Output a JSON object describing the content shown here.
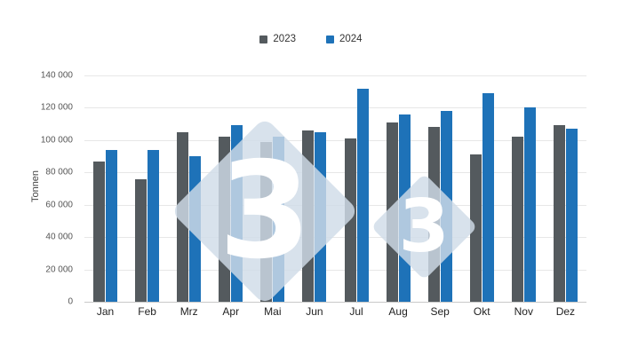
{
  "chart_data": {
    "type": "bar",
    "title": "",
    "xlabel": "",
    "ylabel": "Tonnen",
    "ylim": [
      0,
      140000
    ],
    "grid": true,
    "legend_position": "top",
    "categories": [
      "Jan",
      "Feb",
      "Mrz",
      "Apr",
      "Mai",
      "Jun",
      "Jul",
      "Aug",
      "Sep",
      "Okt",
      "Nov",
      "Dez"
    ],
    "series": [
      {
        "name": "2023",
        "color": "#545a5e",
        "values": [
          87000,
          76000,
          105000,
          102000,
          99000,
          106000,
          101000,
          111000,
          108000,
          91000,
          102000,
          109000
        ]
      },
      {
        "name": "2024",
        "color": "#1e72b8",
        "values": [
          94000,
          94000,
          90000,
          109000,
          102000,
          105000,
          132000,
          116000,
          118000,
          129000,
          120000,
          107000
        ]
      }
    ],
    "yticks": [
      {
        "value": 0,
        "label": "0"
      },
      {
        "value": 20000,
        "label": "20 000"
      },
      {
        "value": 40000,
        "label": "40 000"
      },
      {
        "value": 60000,
        "label": "60 000"
      },
      {
        "value": 80000,
        "label": "80 000"
      },
      {
        "value": 100000,
        "label": "100 000"
      },
      {
        "value": 120000,
        "label": "120 000"
      },
      {
        "value": 140000,
        "label": "140 000"
      }
    ]
  },
  "watermark": {
    "glyph": "3"
  }
}
